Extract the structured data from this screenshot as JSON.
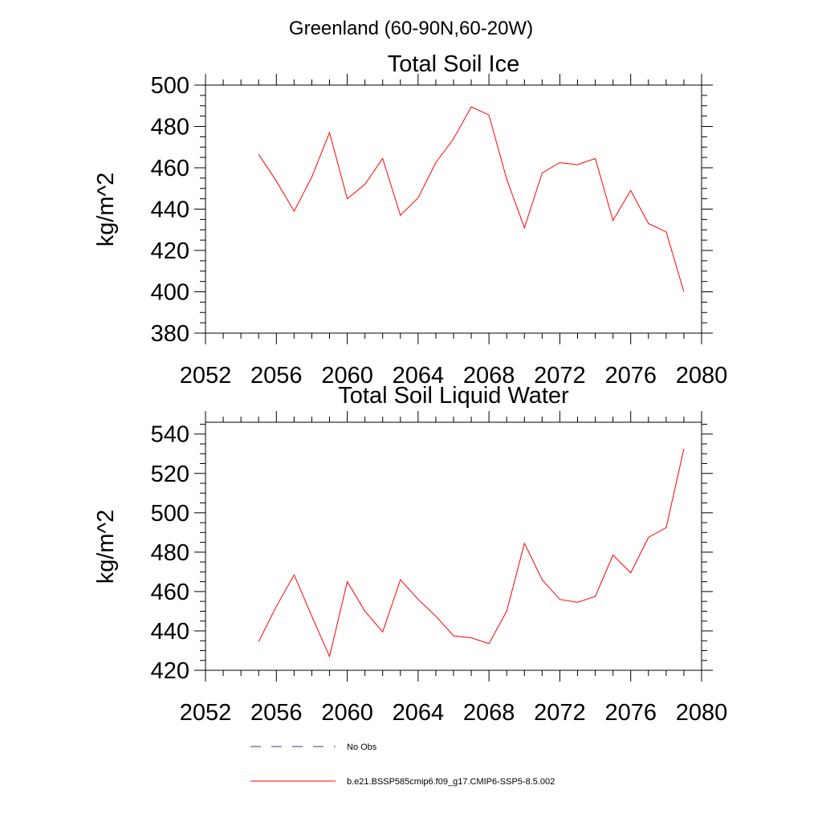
{
  "figure_title": "Greenland (60-90N,60-20W)",
  "chart_data": [
    {
      "type": "line",
      "title": "Total Soil Ice",
      "xlabel": "",
      "ylabel": "kg/m^2",
      "xlim": [
        2052,
        2080
      ],
      "ylim": [
        380,
        500
      ],
      "xticks": [
        2052,
        2056,
        2060,
        2064,
        2068,
        2072,
        2076,
        2080
      ],
      "yticks": [
        380,
        400,
        420,
        440,
        460,
        480,
        500
      ],
      "series": [
        {
          "name": "b.e21.BSSP585cmip6.f09_g17.CMIP6-SSP5-8.5.002",
          "color": "#ff0000",
          "x": [
            2055,
            2056,
            2057,
            2058,
            2059,
            2060,
            2061,
            2062,
            2063,
            2064,
            2065,
            2066,
            2067,
            2068,
            2069,
            2070,
            2071,
            2072,
            2073,
            2074,
            2075,
            2076,
            2077,
            2078,
            2079
          ],
          "values": [
            466.5,
            453.5,
            439,
            455.5,
            477,
            445,
            452,
            464.5,
            437,
            445.5,
            462.5,
            474,
            489.5,
            485.5,
            454.5,
            431,
            457.5,
            462.5,
            461.5,
            464.5,
            434.5,
            449,
            433,
            429,
            400
          ]
        }
      ]
    },
    {
      "type": "line",
      "title": "Total Soil Liquid Water",
      "xlabel": "",
      "ylabel": "kg/m^2",
      "xlim": [
        2052,
        2080
      ],
      "ylim": [
        420,
        546
      ],
      "xticks": [
        2052,
        2056,
        2060,
        2064,
        2068,
        2072,
        2076,
        2080
      ],
      "yticks": [
        420,
        440,
        460,
        480,
        500,
        520,
        540
      ],
      "series": [
        {
          "name": "b.e21.BSSP585cmip6.f09_g17.CMIP6-SSP5-8.5.002",
          "color": "#ff0000",
          "x": [
            2055,
            2056,
            2057,
            2058,
            2059,
            2060,
            2061,
            2062,
            2063,
            2064,
            2065,
            2066,
            2067,
            2068,
            2069,
            2070,
            2071,
            2072,
            2073,
            2074,
            2075,
            2076,
            2077,
            2078,
            2079
          ],
          "values": [
            434.5,
            452.5,
            468.5,
            447.5,
            427,
            465,
            450,
            439.5,
            466,
            456,
            447.5,
            437.5,
            436.5,
            433.5,
            450,
            484.5,
            466,
            456,
            454.5,
            457.5,
            478.5,
            469.5,
            487.5,
            492.5,
            532.5
          ]
        }
      ]
    }
  ],
  "legend": [
    {
      "label": "No Obs",
      "color": "#3a3a8a",
      "style": "dashed"
    },
    {
      "label": "b.e21.BSSP585cmip6.f09_g17.CMIP6-SSP5-8.5.002",
      "color": "#ff0000",
      "style": "solid"
    }
  ]
}
